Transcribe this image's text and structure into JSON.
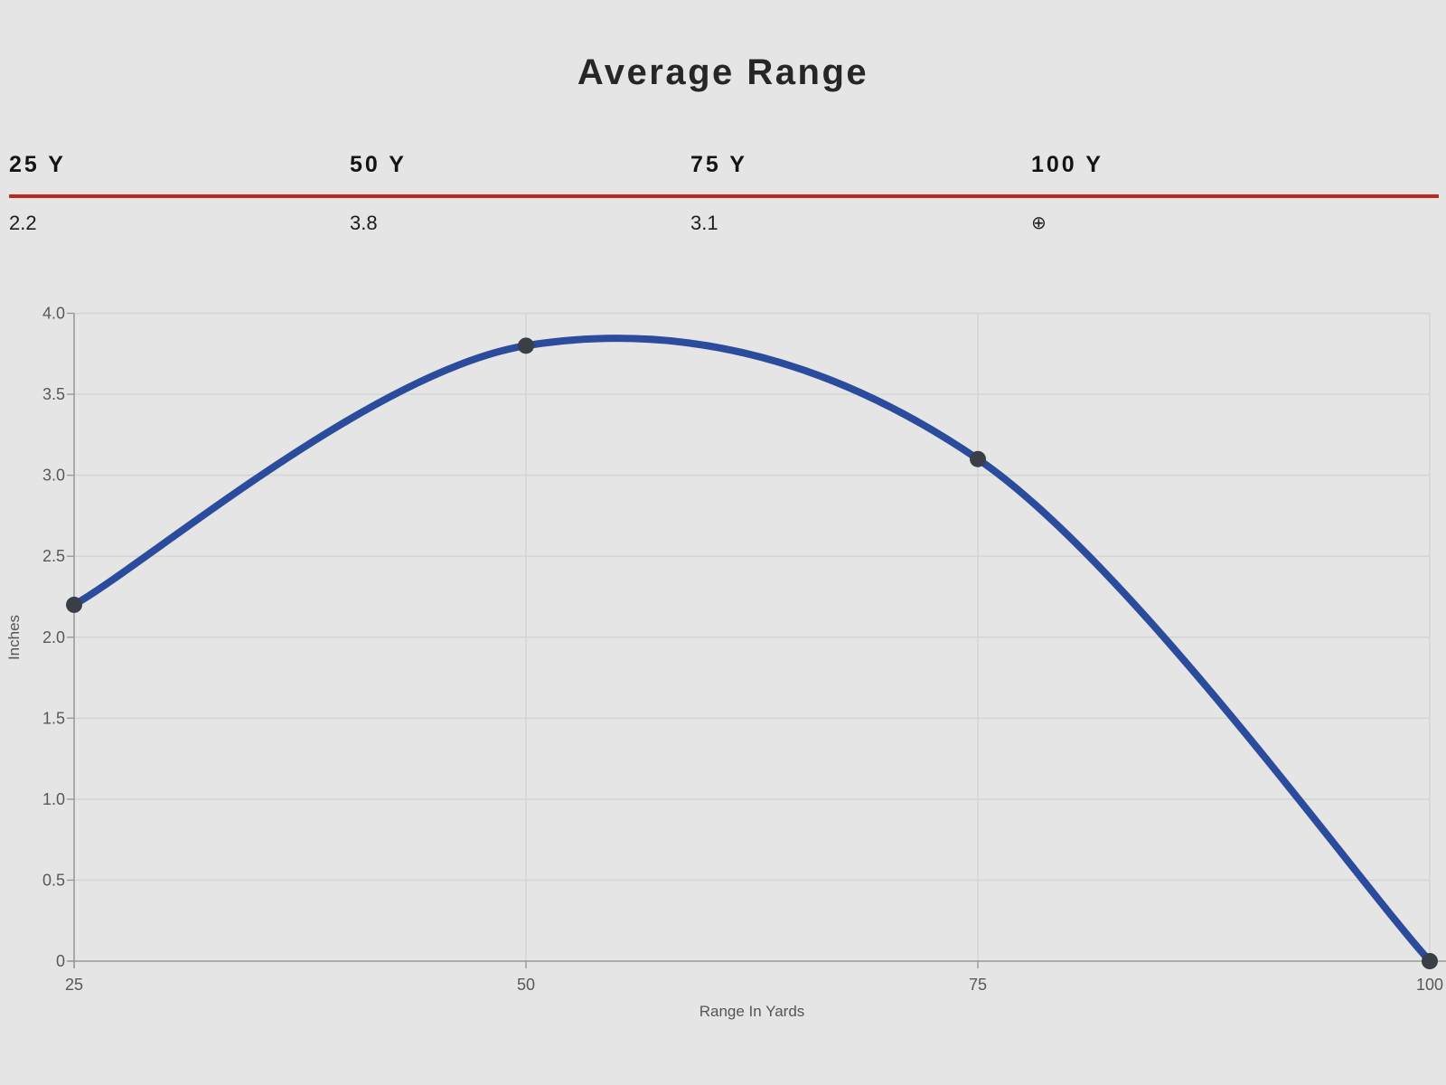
{
  "page": {
    "background": "#e5e5e5"
  },
  "title": "Average Range",
  "stats": {
    "rule_color": "#c1271d",
    "columns": [
      {
        "label": "25 Y",
        "value": "2.2"
      },
      {
        "label": "50 Y",
        "value": "3.8"
      },
      {
        "label": "75 Y",
        "value": "3.1"
      },
      {
        "label": "100 Y",
        "value": "⊕",
        "icon": "target-scope-icon"
      }
    ]
  },
  "chart_data": {
    "type": "line",
    "title": "Average Range",
    "x": [
      25,
      50,
      75,
      100
    ],
    "series": [
      {
        "name": "Average Range",
        "values": [
          2.2,
          3.8,
          3.1,
          0
        ]
      }
    ],
    "xlabel": "Range In Yards",
    "ylabel": "Inches",
    "xlim": [
      25,
      100
    ],
    "ylim": [
      0,
      4
    ],
    "xtick_values": [
      25,
      50,
      75,
      100
    ],
    "xtick_labels": [
      "25",
      "50",
      "75",
      "100"
    ],
    "ytick_values": [
      0,
      0.5,
      1,
      1.5,
      2,
      2.5,
      3,
      3.5,
      4
    ],
    "ytick_labels": [
      "0",
      "0.5",
      "1.0",
      "1.5",
      "2.0",
      "2.5",
      "3.0",
      "3.5",
      "4.0"
    ],
    "grid": true,
    "smooth": true,
    "legend": "none",
    "line_color": "#2b4b9c",
    "marker_color": "#3a3e47",
    "gridline_color": "#d4d4d4",
    "axis_color": "#9a9a9a",
    "tick_label_color": "#58585b"
  }
}
